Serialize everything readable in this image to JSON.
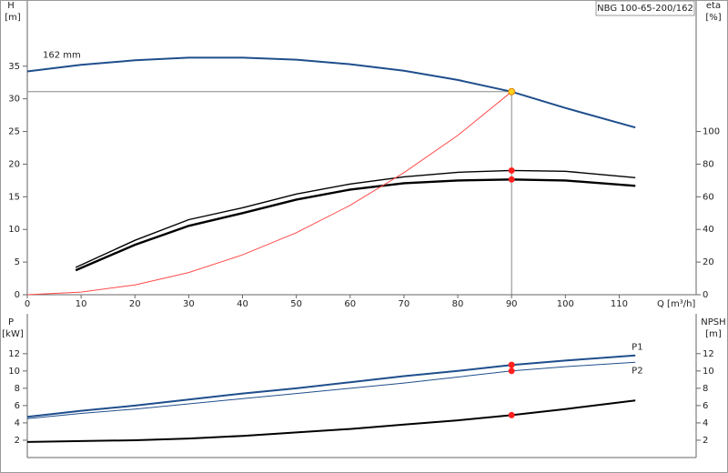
{
  "chart_data": [
    {
      "type": "line",
      "title": "NBG 100-65-200/162",
      "ylabel": "H",
      "yunit": "[m]",
      "y2label": "eta",
      "y2unit": "[%]",
      "xlabel": "Q [m³/h]",
      "xlim": [
        0,
        124.3
      ],
      "xticks": [
        0,
        10,
        20,
        30,
        40,
        50,
        60,
        70,
        80,
        90,
        100,
        110
      ],
      "ylim": [
        0,
        45
      ],
      "yticks": [
        0,
        5,
        10,
        15,
        20,
        25,
        30,
        35
      ],
      "y2lim": [
        0,
        180
      ],
      "y2ticks": [
        0,
        20,
        40,
        60,
        80,
        100
      ],
      "grid": false,
      "duty_point_x": 90,
      "series": [
        {
          "name": "162 mm",
          "color": "#1f4e8c",
          "width": 2,
          "marker_color": "#ffd21f",
          "x": [
            0,
            10,
            20,
            30,
            40,
            50,
            60,
            70,
            80,
            90,
            100,
            113
          ],
          "values": [
            34.2,
            35.2,
            35.9,
            36.3,
            36.3,
            36.0,
            35.3,
            34.3,
            32.9,
            31.1,
            28.6,
            25.6
          ]
        },
        {
          "color": "#000000",
          "width": 1.4,
          "axis": "y2",
          "marker_color": "#ff2020",
          "x": [
            9,
            20,
            30,
            40,
            50,
            60,
            70,
            80,
            90,
            100,
            113
          ],
          "values": [
            16.7,
            33.3,
            46,
            53.3,
            61.7,
            67.8,
            72.2,
            75,
            76.1,
            75.6,
            71.7
          ]
        },
        {
          "color": "#000000",
          "width": 2.4,
          "axis": "y2",
          "marker_color": "#ff2020",
          "x": [
            9,
            20,
            30,
            40,
            50,
            60,
            70,
            80,
            90,
            100,
            113
          ],
          "values": [
            15,
            30.6,
            42.2,
            50,
            58.3,
            64.4,
            68.3,
            70,
            70.6,
            70,
            66.7
          ]
        },
        {
          "color": "#ff4a4a",
          "width": 1,
          "x": [
            0,
            10,
            20,
            30,
            40,
            50,
            60,
            70,
            80,
            90
          ],
          "values": [
            0,
            0.4,
            1.5,
            3.4,
            6.1,
            9.5,
            13.7,
            18.7,
            24.4,
            31.1
          ]
        }
      ]
    },
    {
      "type": "line",
      "ylabel": "P",
      "yunit": "[kW]",
      "y2label": "NPSH",
      "y2unit": "[m]",
      "xlim": [
        0,
        124.3
      ],
      "ylim": [
        0,
        16.6
      ],
      "yticks": [
        2,
        4,
        6,
        8,
        10,
        12
      ],
      "y2lim": [
        0,
        16.6
      ],
      "y2ticks": [
        2,
        4,
        6,
        8,
        10,
        12
      ],
      "grid": false,
      "duty_point_x": 90,
      "series": [
        {
          "name": "P1",
          "color": "#1f4e8c",
          "width": 2,
          "marker_color": "#ff2020",
          "x": [
            0,
            10,
            20,
            30,
            40,
            50,
            60,
            70,
            80,
            90,
            100,
            113
          ],
          "values": [
            4.7,
            5.4,
            6.0,
            6.7,
            7.4,
            8.0,
            8.7,
            9.4,
            10.0,
            10.7,
            11.2,
            11.8
          ]
        },
        {
          "name": "P2",
          "color": "#1f4e8c",
          "width": 1,
          "marker_color": "#ff2020",
          "x": [
            0,
            10,
            20,
            30,
            40,
            50,
            60,
            70,
            80,
            90,
            100,
            113
          ],
          "values": [
            4.5,
            5.1,
            5.6,
            6.2,
            6.8,
            7.4,
            8.0,
            8.6,
            9.3,
            10.0,
            10.5,
            11.0
          ]
        },
        {
          "color": "#000000",
          "width": 2,
          "axis": "y2",
          "marker_color": "#ff2020",
          "x": [
            0,
            10,
            20,
            30,
            40,
            50,
            60,
            70,
            80,
            90,
            100,
            113
          ],
          "values": [
            1.8,
            1.9,
            2.0,
            2.2,
            2.5,
            2.9,
            3.3,
            3.8,
            4.3,
            4.9,
            5.6,
            6.6
          ]
        }
      ]
    }
  ]
}
